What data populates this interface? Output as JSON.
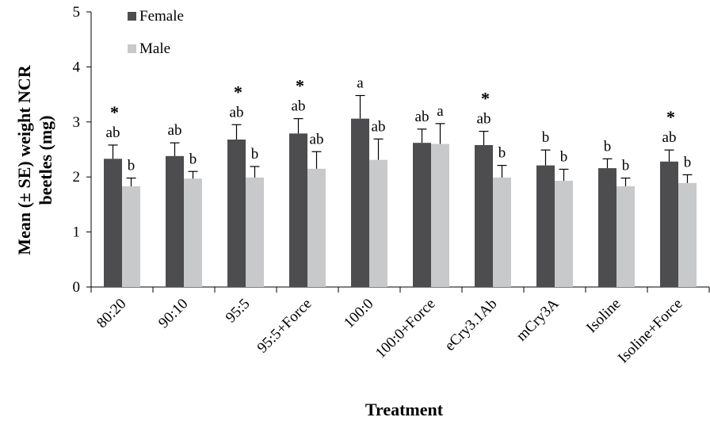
{
  "chart_data": {
    "type": "bar",
    "xlabel": "Treatment",
    "ylabel": [
      "Mean (± SE) weight NCR",
      "beetles (mg)"
    ],
    "ylim": [
      0,
      5
    ],
    "yticks": [
      "0",
      "1",
      "2",
      "3",
      "4",
      "5"
    ],
    "grid": false,
    "legend_position": "top-left",
    "categories": [
      "80:20",
      "90:10",
      "95:5",
      "95:5+Force",
      "100:0",
      "100:0+Force",
      "eCry3.1Ab",
      "mCry3A",
      "Isoline",
      "Isoline+Force"
    ],
    "series": [
      {
        "name": "Female",
        "color": "#4d4d4f",
        "values": [
          2.33,
          2.38,
          2.68,
          2.79,
          3.06,
          2.62,
          2.58,
          2.21,
          2.16,
          2.28
        ],
        "errors": [
          0.25,
          0.24,
          0.27,
          0.27,
          0.42,
          0.25,
          0.25,
          0.28,
          0.17,
          0.21
        ],
        "letters": [
          "ab",
          "ab",
          "ab",
          "ab",
          "a",
          "ab",
          "ab",
          "b",
          "b",
          "ab"
        ]
      },
      {
        "name": "Male",
        "color": "#c8c9cb",
        "values": [
          1.83,
          1.97,
          1.99,
          2.15,
          2.31,
          2.6,
          1.99,
          1.93,
          1.83,
          1.89
        ],
        "errors": [
          0.15,
          0.13,
          0.2,
          0.31,
          0.38,
          0.37,
          0.22,
          0.21,
          0.15,
          0.15
        ],
        "letters": [
          "b",
          "b",
          "b",
          "ab",
          "ab",
          "a",
          "b",
          "b",
          "b",
          "b"
        ]
      }
    ],
    "significance_marker": "*",
    "significant": [
      true,
      false,
      true,
      true,
      false,
      false,
      true,
      false,
      false,
      true
    ]
  }
}
